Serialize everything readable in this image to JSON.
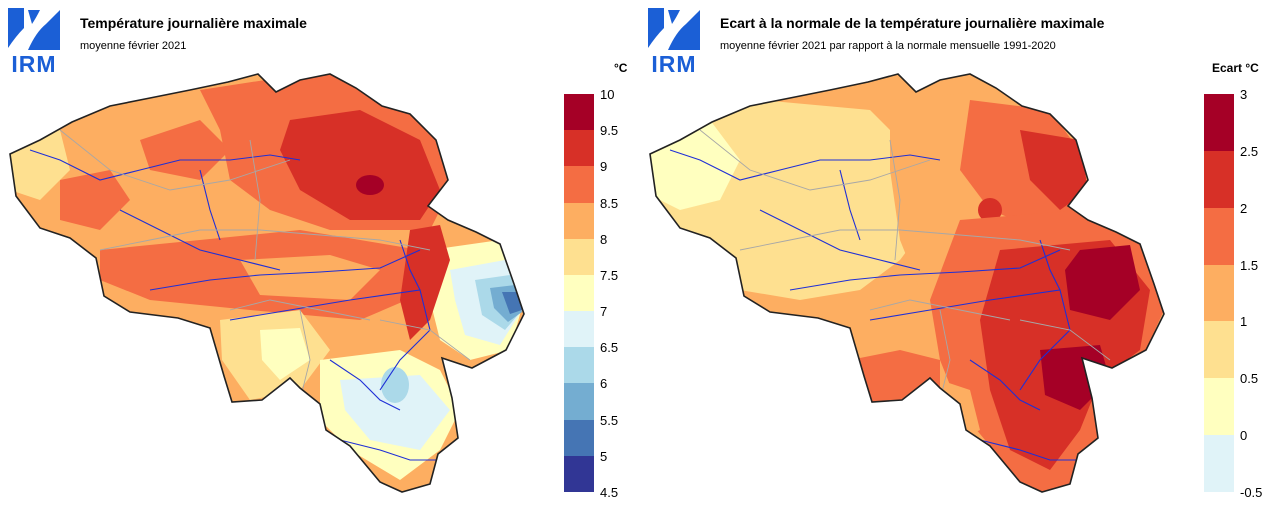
{
  "logo": {
    "text": "IRM",
    "color": "#1b5fd6"
  },
  "panels": [
    {
      "title": "Température journalière maximale",
      "subtitle": "moyenne février 2021",
      "unit": "°C",
      "legend": {
        "ticks": [
          "10",
          "9.5",
          "9",
          "8.5",
          "8",
          "7.5",
          "7",
          "6.5",
          "6",
          "5.5",
          "5",
          "4.5"
        ],
        "colors": [
          "#a50026",
          "#d73027",
          "#f46d43",
          "#fdae61",
          "#fee090",
          "#ffffbf",
          "#e0f3f8",
          "#abd9e9",
          "#74add1",
          "#4575b4",
          "#313695"
        ]
      }
    },
    {
      "title": "Ecart à la normale de la température journalière maximale",
      "subtitle": "moyenne février 2021 par rapport à la normale mensuelle 1991-2020",
      "unit": "Ecart  °C",
      "legend": {
        "ticks": [
          "3",
          "2.5",
          "2",
          "1.5",
          "1",
          "0.5",
          "0",
          "-0.5"
        ],
        "colors": [
          "#a50026",
          "#d73027",
          "#f46d43",
          "#fdae61",
          "#fee090",
          "#ffffbf",
          "#e0f3f8"
        ]
      }
    }
  ]
}
